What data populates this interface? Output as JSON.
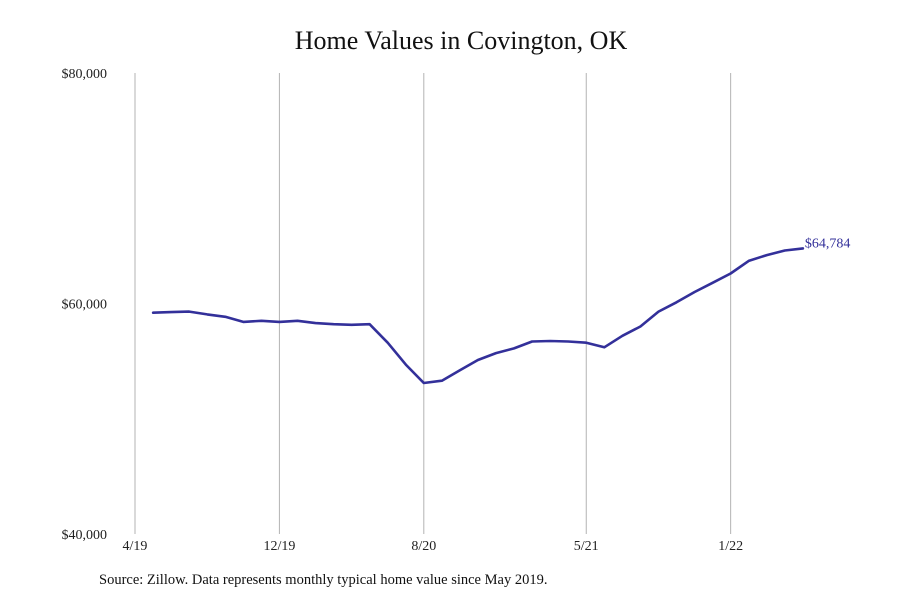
{
  "chart_data": {
    "type": "line",
    "title": "Home Values in Covington, OK",
    "source": "Source: Zillow. Data represents monthly typical home value since May 2019.",
    "ylim": [
      40000,
      80000
    ],
    "y_ticks": [
      {
        "value": 80000,
        "label": "$80,000"
      },
      {
        "value": 60000,
        "label": "$60,000"
      },
      {
        "value": 40000,
        "label": "$40,000"
      }
    ],
    "x_ticks": [
      {
        "date": "2019-04",
        "label": "4/19"
      },
      {
        "date": "2019-12",
        "label": "12/19"
      },
      {
        "date": "2020-08",
        "label": "8/20"
      },
      {
        "date": "2021-05",
        "label": "5/21"
      },
      {
        "date": "2022-01",
        "label": "1/22"
      }
    ],
    "grid": "vertical",
    "line_color": "#33309a",
    "end_label": "$64,784",
    "series": [
      {
        "x": [
          "2019-05",
          "2019-06",
          "2019-07",
          "2019-08",
          "2019-09",
          "2019-10",
          "2019-11",
          "2019-12",
          "2020-01",
          "2020-02",
          "2020-03",
          "2020-04",
          "2020-05",
          "2020-06",
          "2020-07",
          "2020-08",
          "2020-09",
          "2020-10",
          "2020-11",
          "2020-12",
          "2021-01",
          "2021-02",
          "2021-03",
          "2021-04",
          "2021-05",
          "2021-06",
          "2021-07",
          "2021-08",
          "2021-09",
          "2021-10",
          "2021-11",
          "2021-12",
          "2022-01",
          "2022-02",
          "2022-03",
          "2022-04",
          "2022-05"
        ],
        "values": [
          59200,
          59250,
          59300,
          59050,
          58850,
          58400,
          58500,
          58400,
          58500,
          58300,
          58200,
          58150,
          58200,
          56600,
          54700,
          53100,
          53300,
          54200,
          55100,
          55700,
          56100,
          56700,
          56750,
          56700,
          56600,
          56200,
          57200,
          58000,
          59300,
          60100,
          61000,
          61800,
          62600,
          63700,
          64200,
          64600,
          64784
        ]
      }
    ]
  }
}
